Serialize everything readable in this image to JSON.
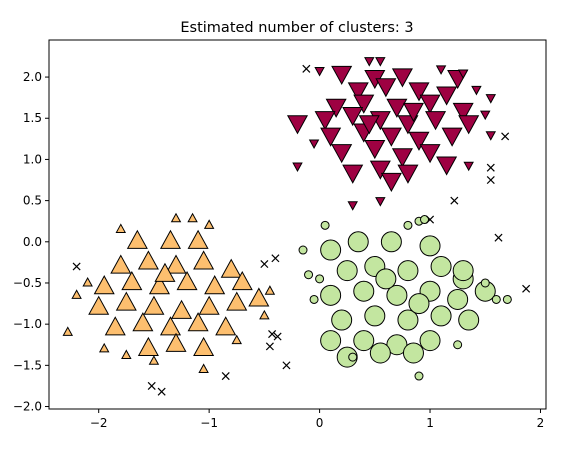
{
  "chart_data": {
    "type": "scatter",
    "title": "Estimated number of clusters: 3",
    "xlabel": "",
    "ylabel": "",
    "xlim": [
      -2.45,
      2.05
    ],
    "ylim": [
      -2.03,
      2.45
    ],
    "x_ticks": [
      -2,
      -1,
      0,
      1,
      2
    ],
    "y_ticks": [
      -2.0,
      -1.5,
      -1.0,
      -0.5,
      0.0,
      0.5,
      1.0,
      1.5,
      2.0
    ],
    "x_tick_labels": [
      "−2",
      "−1",
      "0",
      "1",
      "2"
    ],
    "y_tick_labels": [
      "−2.0",
      "−1.5",
      "−1.0",
      "−0.5",
      "0.0",
      "0.5",
      "1.0",
      "1.5",
      "2.0"
    ],
    "grid": false,
    "legend": "none",
    "series": [
      {
        "marker": "triangle-down",
        "color": "#9e0142",
        "core_points": [
          [
            0.2,
            2.05
          ],
          [
            0.5,
            2.0
          ],
          [
            0.75,
            2.02
          ],
          [
            1.25,
            2.0
          ],
          [
            0.35,
            1.85
          ],
          [
            0.6,
            1.9
          ],
          [
            0.9,
            1.85
          ],
          [
            1.15,
            1.8
          ],
          [
            0.15,
            1.65
          ],
          [
            0.4,
            1.7
          ],
          [
            0.7,
            1.65
          ],
          [
            1.0,
            1.7
          ],
          [
            1.3,
            1.6
          ],
          [
            -0.2,
            1.45
          ],
          [
            0.05,
            1.5
          ],
          [
            0.3,
            1.55
          ],
          [
            0.55,
            1.5
          ],
          [
            0.8,
            1.45
          ],
          [
            1.05,
            1.5
          ],
          [
            1.35,
            1.45
          ],
          [
            0.1,
            1.3
          ],
          [
            0.4,
            1.35
          ],
          [
            0.65,
            1.3
          ],
          [
            0.9,
            1.25
          ],
          [
            1.2,
            1.3
          ],
          [
            0.2,
            1.1
          ],
          [
            0.5,
            1.15
          ],
          [
            0.75,
            1.05
          ],
          [
            1.0,
            1.1
          ],
          [
            1.15,
            0.95
          ],
          [
            0.3,
            0.85
          ],
          [
            0.55,
            0.9
          ],
          [
            0.8,
            0.85
          ],
          [
            0.65,
            0.75
          ],
          [
            0.45,
            1.45
          ],
          [
            0.85,
            1.6
          ]
        ],
        "border_points": [
          [
            0.45,
            2.2
          ],
          [
            0.55,
            2.2
          ],
          [
            0.0,
            2.08
          ],
          [
            1.3,
            2.05
          ],
          [
            1.42,
            1.85
          ],
          [
            1.55,
            1.75
          ],
          [
            1.55,
            1.3
          ],
          [
            -0.2,
            0.92
          ],
          [
            1.35,
            0.93
          ],
          [
            -0.05,
            1.2
          ],
          [
            0.3,
            0.45
          ],
          [
            0.55,
            0.5
          ],
          [
            1.5,
            1.55
          ],
          [
            1.1,
            2.1
          ]
        ]
      },
      {
        "marker": "circle",
        "color": "#c3e6a0",
        "core_points": [
          [
            0.1,
            -0.1
          ],
          [
            0.35,
            0.0
          ],
          [
            0.65,
            0.0
          ],
          [
            1.0,
            -0.05
          ],
          [
            0.25,
            -0.35
          ],
          [
            0.5,
            -0.3
          ],
          [
            0.8,
            -0.35
          ],
          [
            1.1,
            -0.3
          ],
          [
            1.3,
            -0.45
          ],
          [
            0.1,
            -0.65
          ],
          [
            0.4,
            -0.6
          ],
          [
            0.7,
            -0.65
          ],
          [
            1.0,
            -0.6
          ],
          [
            1.25,
            -0.7
          ],
          [
            1.5,
            -0.6
          ],
          [
            0.2,
            -0.95
          ],
          [
            0.5,
            -0.9
          ],
          [
            0.8,
            -0.95
          ],
          [
            1.1,
            -0.9
          ],
          [
            1.35,
            -0.95
          ],
          [
            0.1,
            -1.2
          ],
          [
            0.4,
            -1.2
          ],
          [
            0.7,
            -1.25
          ],
          [
            1.0,
            -1.2
          ],
          [
            0.25,
            -1.4
          ],
          [
            0.55,
            -1.35
          ],
          [
            0.85,
            -1.35
          ],
          [
            0.6,
            -0.45
          ],
          [
            0.9,
            -0.75
          ],
          [
            1.3,
            -0.35
          ]
        ],
        "border_points": [
          [
            0.05,
            0.2
          ],
          [
            0.8,
            0.2
          ],
          [
            0.9,
            0.25
          ],
          [
            0.95,
            0.27
          ],
          [
            -0.15,
            -0.1
          ],
          [
            -0.1,
            -0.4
          ],
          [
            -0.05,
            -0.7
          ],
          [
            0.3,
            -1.4
          ],
          [
            0.9,
            -1.63
          ],
          [
            1.6,
            -0.7
          ],
          [
            1.7,
            -0.7
          ],
          [
            0.0,
            -0.45
          ],
          [
            1.25,
            -1.25
          ],
          [
            1.5,
            -0.5
          ]
        ]
      },
      {
        "marker": "triangle-up",
        "color": "#fdbf6f",
        "core_points": [
          [
            -1.65,
            0.0
          ],
          [
            -1.35,
            0.0
          ],
          [
            -1.1,
            0.0
          ],
          [
            -1.8,
            -0.3
          ],
          [
            -1.55,
            -0.25
          ],
          [
            -1.3,
            -0.3
          ],
          [
            -1.05,
            -0.25
          ],
          [
            -0.8,
            -0.35
          ],
          [
            -1.95,
            -0.55
          ],
          [
            -1.7,
            -0.5
          ],
          [
            -1.45,
            -0.55
          ],
          [
            -1.2,
            -0.5
          ],
          [
            -0.95,
            -0.55
          ],
          [
            -0.7,
            -0.5
          ],
          [
            -2.0,
            -0.8
          ],
          [
            -1.75,
            -0.75
          ],
          [
            -1.5,
            -0.8
          ],
          [
            -1.25,
            -0.85
          ],
          [
            -1.0,
            -0.8
          ],
          [
            -0.75,
            -0.75
          ],
          [
            -0.55,
            -0.7
          ],
          [
            -1.85,
            -1.05
          ],
          [
            -1.6,
            -1.0
          ],
          [
            -1.35,
            -1.05
          ],
          [
            -1.1,
            -1.0
          ],
          [
            -0.85,
            -1.05
          ],
          [
            -1.55,
            -1.3
          ],
          [
            -1.3,
            -1.25
          ],
          [
            -1.05,
            -1.3
          ],
          [
            -1.4,
            -0.4
          ]
        ],
        "border_points": [
          [
            -1.15,
            0.28
          ],
          [
            -1.0,
            0.2
          ],
          [
            -1.8,
            0.15
          ],
          [
            -2.1,
            -0.5
          ],
          [
            -2.2,
            -0.65
          ],
          [
            -2.28,
            -1.1
          ],
          [
            -1.95,
            -1.3
          ],
          [
            -1.75,
            -1.38
          ],
          [
            -1.05,
            -1.55
          ],
          [
            -0.75,
            -1.2
          ],
          [
            -0.45,
            -0.6
          ],
          [
            -0.5,
            -0.9
          ],
          [
            -1.3,
            0.28
          ],
          [
            -1.5,
            -1.45
          ]
        ]
      }
    ],
    "noise": {
      "marker": "x",
      "color": "#000000",
      "points": [
        [
          -0.12,
          2.1
        ],
        [
          1.68,
          1.28
        ],
        [
          1.55,
          0.9
        ],
        [
          1.55,
          0.75
        ],
        [
          1.22,
          0.5
        ],
        [
          1.0,
          0.27
        ],
        [
          1.62,
          0.05
        ],
        [
          1.87,
          -0.57
        ],
        [
          -2.2,
          -0.3
        ],
        [
          -0.4,
          -0.2
        ],
        [
          -0.5,
          -0.27
        ],
        [
          -0.43,
          -1.12
        ],
        [
          -0.38,
          -1.15
        ],
        [
          -0.45,
          -1.27
        ],
        [
          -0.3,
          -1.5
        ],
        [
          -0.85,
          -1.63
        ],
        [
          -1.52,
          -1.75
        ],
        [
          -1.43,
          -1.82
        ]
      ]
    }
  }
}
